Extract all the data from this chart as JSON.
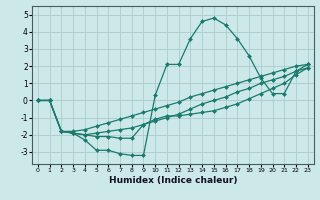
{
  "xlabel": "Humidex (Indice chaleur)",
  "xlim": [
    -0.5,
    23.5
  ],
  "ylim": [
    -3.7,
    5.5
  ],
  "yticks": [
    -3,
    -2,
    -1,
    0,
    1,
    2,
    3,
    4,
    5
  ],
  "xticks": [
    0,
    1,
    2,
    3,
    4,
    5,
    6,
    7,
    8,
    9,
    10,
    11,
    12,
    13,
    14,
    15,
    16,
    17,
    18,
    19,
    20,
    21,
    22,
    23
  ],
  "bg_color": "#cce8e8",
  "grid_color": "#aacccc",
  "line_color": "#1a7a6e",
  "line_width": 0.9,
  "marker": "D",
  "marker_size": 2.0,
  "series": [
    [
      0.0,
      0.0,
      -1.8,
      -1.9,
      -2.3,
      -2.9,
      -2.9,
      -3.1,
      -3.2,
      -3.2,
      0.3,
      2.1,
      2.1,
      3.6,
      4.6,
      4.8,
      4.4,
      3.6,
      2.6,
      1.3,
      0.4,
      0.4,
      1.7,
      2.1
    ],
    [
      0.0,
      0.0,
      -1.8,
      -1.9,
      -2.0,
      -2.1,
      -2.1,
      -2.2,
      -2.2,
      -1.4,
      -1.1,
      -0.9,
      -0.9,
      -0.8,
      -0.7,
      -0.6,
      -0.4,
      -0.2,
      0.1,
      0.4,
      0.7,
      1.0,
      1.5,
      1.9
    ],
    [
      0.0,
      0.0,
      -1.8,
      -1.9,
      -2.0,
      -1.9,
      -1.8,
      -1.7,
      -1.6,
      -1.4,
      -1.2,
      -1.0,
      -0.8,
      -0.5,
      -0.2,
      0.0,
      0.2,
      0.5,
      0.7,
      1.0,
      1.2,
      1.4,
      1.7,
      1.9
    ],
    [
      0.0,
      0.0,
      -1.8,
      -1.8,
      -1.7,
      -1.5,
      -1.3,
      -1.1,
      -0.9,
      -0.7,
      -0.5,
      -0.3,
      -0.1,
      0.2,
      0.4,
      0.6,
      0.8,
      1.0,
      1.2,
      1.4,
      1.6,
      1.8,
      2.0,
      2.1
    ]
  ]
}
